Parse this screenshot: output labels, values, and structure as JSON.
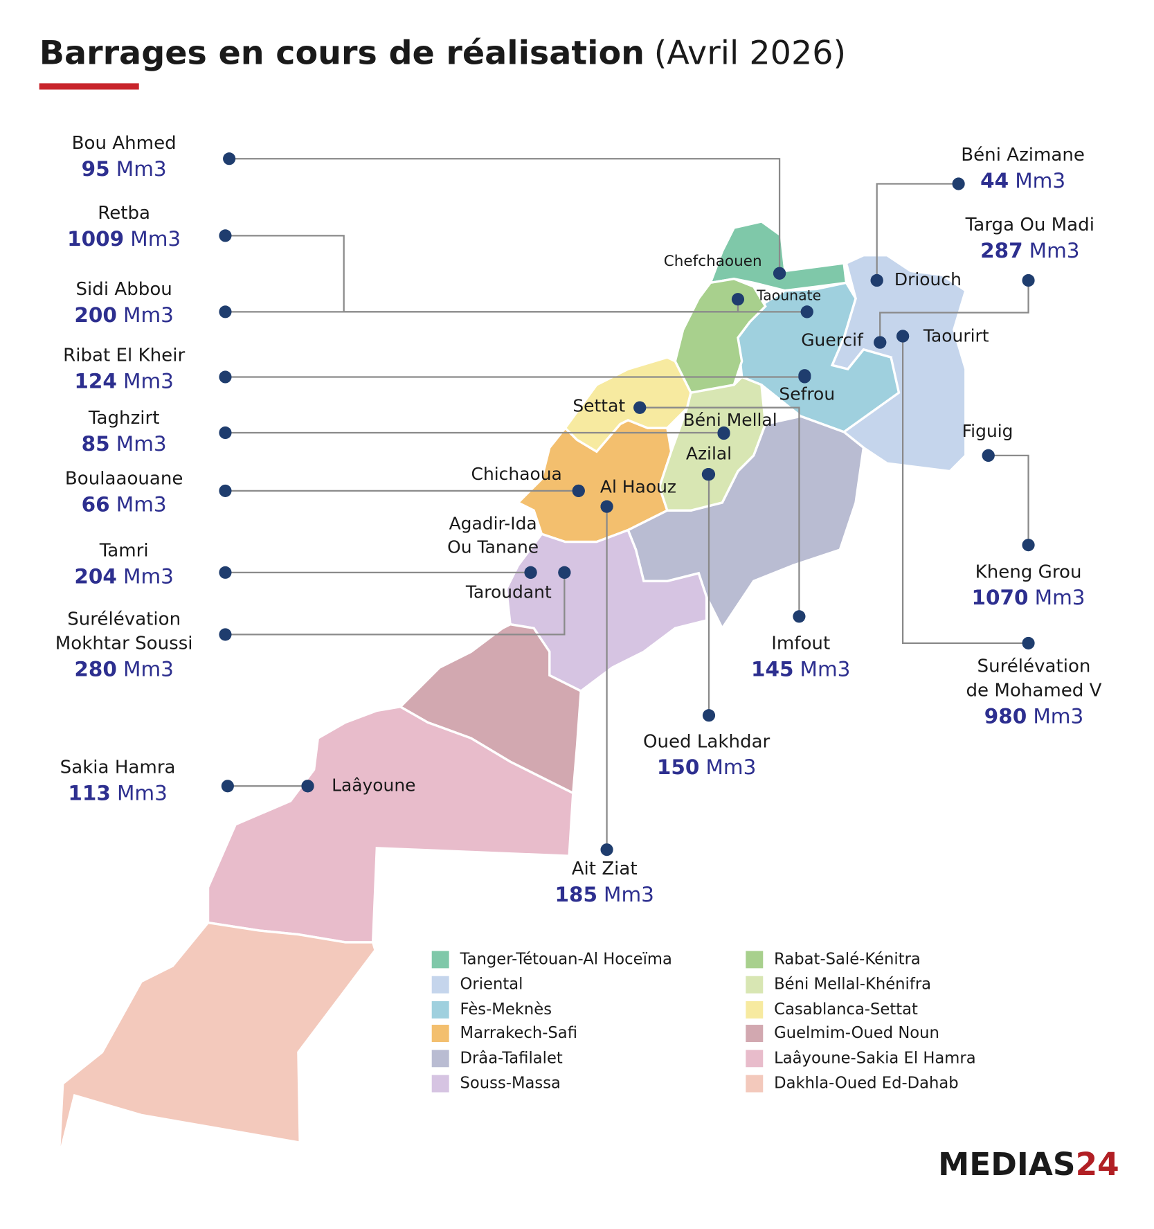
{
  "title": "Barrages en cours de réalisation",
  "subtitle": "(Avril 2026)",
  "unit": "Mm3",
  "dams": [
    {
      "name": [
        "Bou Ahmed"
      ],
      "volume": 95
    },
    {
      "name": [
        "Retba"
      ],
      "volume": 1009
    },
    {
      "name": [
        "Sidi Abbou"
      ],
      "volume": 200
    },
    {
      "name": [
        "Ribat El Kheir"
      ],
      "volume": 124
    },
    {
      "name": [
        "Taghzirt"
      ],
      "volume": 85
    },
    {
      "name": [
        "Boulaaouane"
      ],
      "volume": 66
    },
    {
      "name": [
        "Tamri"
      ],
      "volume": 204
    },
    {
      "name": [
        "Surélévation",
        "Mokhtar Soussi"
      ],
      "volume": 280
    },
    {
      "name": [
        "Sakia Hamra"
      ],
      "volume": 113
    },
    {
      "name": [
        "Béni Azimane"
      ],
      "volume": 44
    },
    {
      "name": [
        "Targa Ou Madi"
      ],
      "volume": 287
    },
    {
      "name": [
        "Kheng Grou"
      ],
      "volume": 1070
    },
    {
      "name": [
        "Surélévation",
        "de Mohamed V"
      ],
      "volume": 980
    },
    {
      "name": [
        "Imfout"
      ],
      "volume": 145
    },
    {
      "name": [
        "Oued Lakhdar"
      ],
      "volume": 150
    },
    {
      "name": [
        "Ait Ziat"
      ],
      "volume": 185
    }
  ],
  "cities": [
    {
      "label": [
        "Chefchaouen"
      ]
    },
    {
      "label": [
        "Taounate"
      ]
    },
    {
      "label": [
        "Sefrou"
      ]
    },
    {
      "label": [
        "Béni Mellal"
      ]
    },
    {
      "label": [
        "Chichaoua"
      ]
    },
    {
      "label": [
        "Agadir-Ida",
        "Ou Tanane"
      ]
    },
    {
      "label": [
        "Taroudant"
      ]
    },
    {
      "label": [
        "Laâyoune"
      ]
    },
    {
      "label": [
        "Driouch"
      ]
    },
    {
      "label": [
        "Guercif"
      ]
    },
    {
      "label": [
        "Figuig"
      ]
    },
    {
      "label": [
        "Taourirt"
      ]
    },
    {
      "label": [
        "Settat"
      ]
    },
    {
      "label": [
        "Azilal"
      ]
    },
    {
      "label": [
        "Al Haouz"
      ]
    }
  ],
  "legend": [
    {
      "name": "Tanger-Tétouan-Al Hoceïma",
      "color": "#7fc8a9"
    },
    {
      "name": "Oriental",
      "color": "#c5d5ec"
    },
    {
      "name": "Fès-Meknès",
      "color": "#9fd0de"
    },
    {
      "name": "Marrakech-Safi",
      "color": "#f3bf6e"
    },
    {
      "name": "Drâa-Tafilalet",
      "color": "#b9bcd2"
    },
    {
      "name": "Souss-Massa",
      "color": "#d6c4e2"
    },
    {
      "name": "Rabat-Salé-Kénitra",
      "color": "#a8d08d"
    },
    {
      "name": "Béni Mellal-Khénifra",
      "color": "#d8e6b3"
    },
    {
      "name": "Casablanca-Settat",
      "color": "#f7eaa0"
    },
    {
      "name": "Guelmim-Oued Noun",
      "color": "#d2a8b0"
    },
    {
      "name": "Laâyoune-Sakia El Hamra",
      "color": "#e8bccb"
    },
    {
      "name": "Dakhla-Oued Ed-Dahab",
      "color": "#f3c9bc"
    }
  ],
  "brand": [
    "MEDIAS",
    "24"
  ]
}
